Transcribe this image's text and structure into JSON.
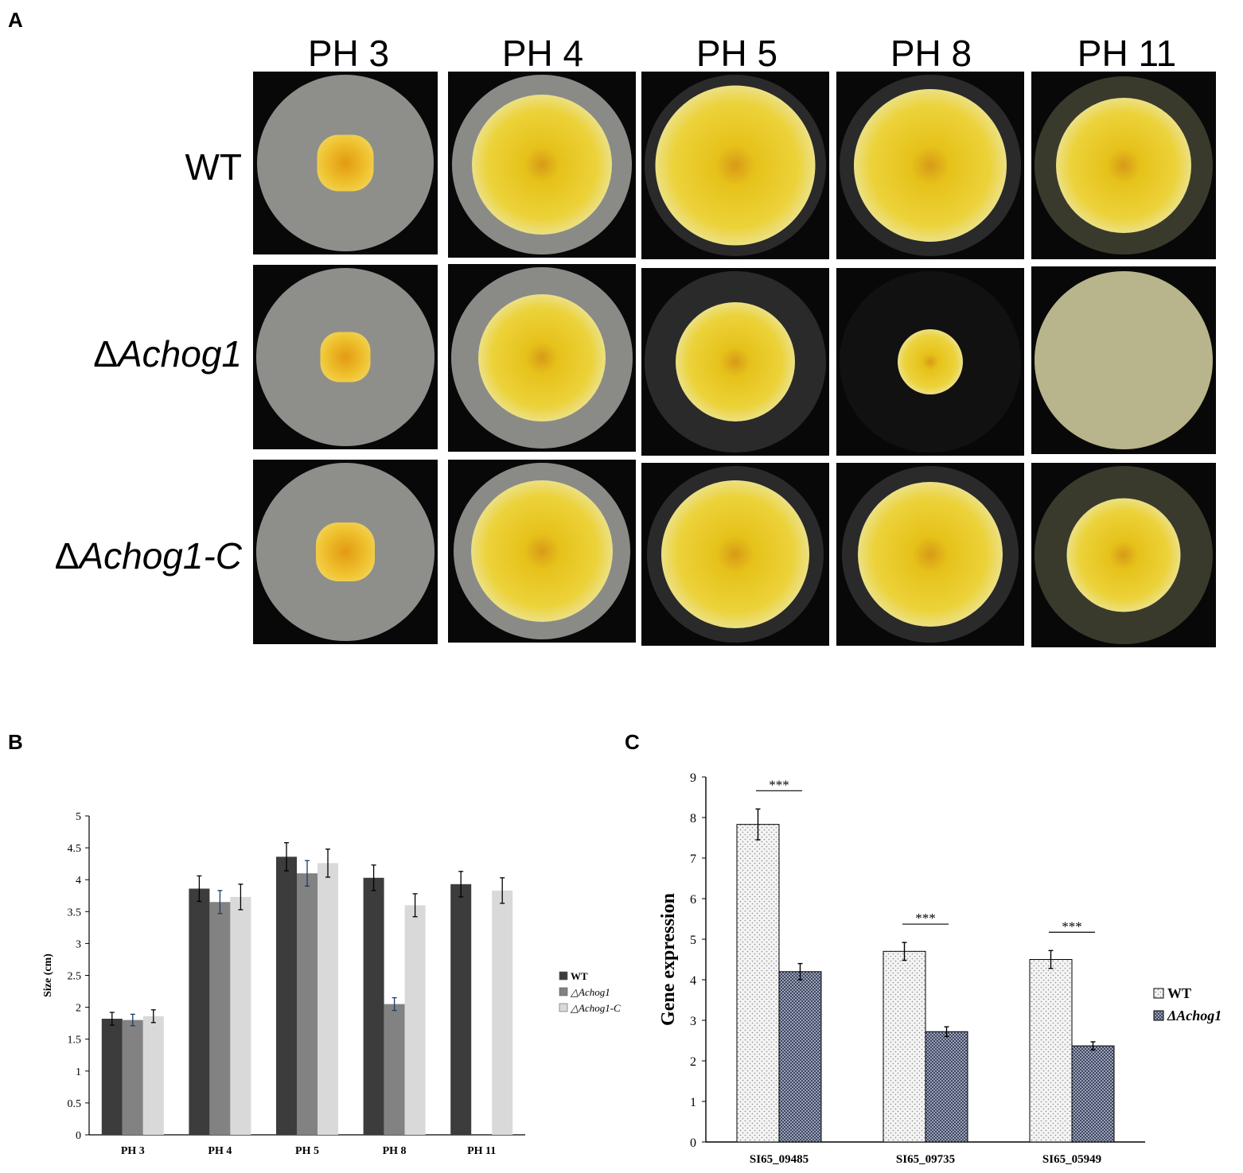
{
  "panel_labels": {
    "a": "A",
    "b": "B",
    "c": "C"
  },
  "panel_a": {
    "columns": [
      "PH 3",
      "PH 4",
      "PH 5",
      "PH 8",
      "PH 11"
    ],
    "rows": [
      {
        "prefix": "",
        "label": "WT"
      },
      {
        "prefix": "Δ",
        "label": "Achog1"
      },
      {
        "prefix": "Δ",
        "label": "Achog1-C"
      }
    ],
    "colors": {
      "agar_ph3": "#8e8f8b",
      "agar_other": "#2a2a2a",
      "agar_ph11": "#b8b48c",
      "colony_yellow": "#e6c21a",
      "colony_orange": "#e39a12",
      "mycelium_white": "#e9e8d8"
    },
    "colony_sizes": [
      [
        0.32,
        0.78,
        0.88,
        0.84,
        0.76
      ],
      [
        0.28,
        0.7,
        0.66,
        0.36,
        0.0
      ],
      [
        0.33,
        0.8,
        0.84,
        0.82,
        0.64
      ]
    ]
  },
  "chart_data": [
    {
      "type": "bar",
      "categories": [
        "PH 3",
        "PH 4",
        "PH 5",
        "PH 8",
        "PH 11"
      ],
      "series": [
        {
          "name": "WT",
          "prefix": "",
          "values": [
            1.82,
            3.86,
            4.36,
            4.03,
            3.93
          ],
          "errors": [
            0.1,
            0.2,
            0.22,
            0.2,
            0.2
          ],
          "color": "#3c3c3c"
        },
        {
          "name": "Achog1",
          "prefix": "△",
          "values": [
            1.8,
            3.65,
            4.1,
            2.05,
            0
          ],
          "errors": [
            0.09,
            0.18,
            0.2,
            0.1,
            0
          ],
          "color": "#828282"
        },
        {
          "name": "Achog1-C",
          "prefix": "△",
          "values": [
            1.86,
            3.73,
            4.26,
            3.6,
            3.83
          ],
          "errors": [
            0.1,
            0.2,
            0.22,
            0.18,
            0.2
          ],
          "color": "#d9d9d9"
        }
      ],
      "ylabel": "Size (cm)",
      "ylim": [
        0,
        5
      ],
      "yticks": [
        "0",
        "0.5",
        "1",
        "1.5",
        "2",
        "2.5",
        "3",
        "3.5",
        "4",
        "4.5",
        "5"
      ],
      "significance": [
        {
          "category": "PH 8",
          "label": "***"
        },
        {
          "category": "PH 11",
          "label": "***"
        }
      ],
      "legend": "right"
    },
    {
      "type": "bar",
      "categories": [
        "SI65_09485",
        "SI65_09735",
        "SI65_05949"
      ],
      "series": [
        {
          "name": "WT",
          "prefix": "",
          "values": [
            7.83,
            4.7,
            4.5
          ],
          "errors": [
            0.38,
            0.22,
            0.22
          ],
          "color": "#ececec"
        },
        {
          "name": "Achog1",
          "prefix": "Δ",
          "values": [
            4.2,
            2.72,
            2.37
          ],
          "errors": [
            0.2,
            0.12,
            0.1
          ],
          "color": "#5a6278"
        }
      ],
      "ylabel": "Gene expression",
      "ylim": [
        0,
        9
      ],
      "yticks": [
        "0",
        "1",
        "2",
        "3",
        "4",
        "5",
        "6",
        "7",
        "8",
        "9"
      ],
      "significance": [
        {
          "category": "SI65_09485",
          "label": "***"
        },
        {
          "category": "SI65_09735",
          "label": "***"
        },
        {
          "category": "SI65_05949",
          "label": "***"
        }
      ],
      "legend": "right"
    }
  ]
}
